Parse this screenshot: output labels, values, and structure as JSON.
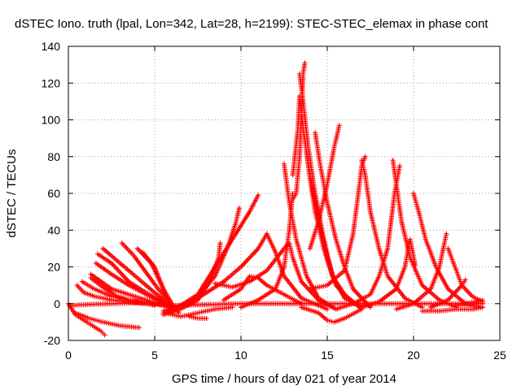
{
  "chart_data": {
    "type": "scatter",
    "title": "dSTEC Iono. truth (lpal, Lon=342, Lat=28, h=2199): STEC-STEC_elemax in phase cont",
    "xlabel": "GPS time / hours of day 021 of year 2014",
    "ylabel": "dSTEC  / TECUs",
    "xlim": [
      0,
      25
    ],
    "ylim": [
      -20,
      140
    ],
    "xticks": [
      0,
      5,
      10,
      15,
      20,
      25
    ],
    "yticks": [
      -20,
      0,
      20,
      40,
      60,
      80,
      100,
      120,
      140
    ],
    "grid": true,
    "marker": "plus",
    "color": "#ff0000",
    "series": [
      {
        "points": [
          [
            0.0,
            0
          ],
          [
            0.4,
            -6
          ],
          [
            0.9,
            -9
          ],
          [
            1.4,
            -12
          ],
          [
            1.9,
            -15
          ],
          [
            2.1,
            -17
          ]
        ]
      },
      {
        "points": [
          [
            0.4,
            -5
          ],
          [
            1.2,
            -8
          ],
          [
            2.0,
            -10
          ],
          [
            3.0,
            -12
          ],
          [
            4.1,
            -13
          ]
        ]
      },
      {
        "points": [
          [
            0.5,
            10
          ],
          [
            0.9,
            6
          ],
          [
            1.5,
            4
          ],
          [
            2.5,
            2
          ],
          [
            3.5,
            1
          ],
          [
            4.5,
            0
          ],
          [
            5.0,
            -1
          ]
        ]
      },
      {
        "points": [
          [
            0.8,
            12
          ],
          [
            1.5,
            8
          ],
          [
            2.5,
            4
          ],
          [
            3.5,
            2
          ],
          [
            4.5,
            0.5
          ],
          [
            5.5,
            -1
          ]
        ]
      },
      {
        "points": [
          [
            1.3,
            16
          ],
          [
            2.5,
            8
          ],
          [
            3.5,
            5
          ],
          [
            4.5,
            2
          ],
          [
            5.5,
            -1
          ],
          [
            6.0,
            -3
          ]
        ]
      },
      {
        "points": [
          [
            1.6,
            22
          ],
          [
            2.5,
            16
          ],
          [
            3.5,
            10
          ],
          [
            4.5,
            5
          ],
          [
            5.5,
            0
          ],
          [
            6.0,
            -2
          ]
        ]
      },
      {
        "points": [
          [
            1.7,
            27
          ],
          [
            2.5,
            22
          ],
          [
            3.5,
            12
          ],
          [
            4.5,
            6
          ],
          [
            5.5,
            1
          ],
          [
            6.0,
            -2
          ]
        ]
      },
      {
        "points": [
          [
            2.0,
            30
          ],
          [
            3.0,
            22
          ],
          [
            4.0,
            14
          ],
          [
            5.0,
            6
          ],
          [
            5.7,
            1
          ],
          [
            6.0,
            -2
          ]
        ]
      },
      {
        "points": [
          [
            3.1,
            33
          ],
          [
            3.8,
            26
          ],
          [
            4.5,
            17
          ],
          [
            5.2,
            8
          ],
          [
            5.8,
            2
          ],
          [
            6.0,
            -2
          ]
        ]
      },
      {
        "points": [
          [
            4.0,
            30
          ],
          [
            4.8,
            22
          ],
          [
            5.4,
            10
          ],
          [
            5.8,
            2
          ],
          [
            6.1,
            -4
          ]
        ]
      },
      {
        "points": [
          [
            4.3,
            28
          ],
          [
            5.0,
            20
          ],
          [
            5.5,
            8
          ],
          [
            6.0,
            0
          ],
          [
            6.4,
            -5
          ]
        ]
      },
      {
        "points": [
          [
            1.3,
            14
          ],
          [
            2.0,
            9
          ],
          [
            2.8,
            4
          ],
          [
            3.5,
            2
          ],
          [
            4.0,
            1
          ]
        ]
      },
      {
        "points": [
          [
            0.1,
            -1
          ],
          [
            1.0,
            -0.5
          ],
          [
            2.5,
            0
          ],
          [
            4.0,
            0.5
          ],
          [
            6.0,
            -1
          ],
          [
            8.0,
            -0.5
          ],
          [
            10.0,
            0
          ],
          [
            12.0,
            0
          ],
          [
            14.0,
            0
          ],
          [
            16.0,
            0
          ],
          [
            18.0,
            0
          ],
          [
            20.0,
            0
          ],
          [
            22.0,
            0
          ],
          [
            24.0,
            0
          ]
        ]
      },
      {
        "points": [
          [
            5.6,
            -5
          ],
          [
            6.5,
            -7
          ],
          [
            7.5,
            -5
          ],
          [
            8.5,
            -3
          ],
          [
            9.5,
            -2
          ]
        ]
      },
      {
        "points": [
          [
            7.0,
            -7
          ],
          [
            7.5,
            -8
          ],
          [
            8.0,
            -8
          ]
        ]
      },
      {
        "points": [
          [
            5.5,
            -6
          ],
          [
            6.5,
            -3
          ],
          [
            7.5,
            2
          ],
          [
            8.2,
            12
          ],
          [
            8.7,
            25
          ],
          [
            8.8,
            33
          ]
        ]
      },
      {
        "points": [
          [
            5.5,
            -5
          ],
          [
            6.5,
            -2
          ],
          [
            7.5,
            4
          ],
          [
            8.5,
            15
          ],
          [
            9.2,
            30
          ],
          [
            9.7,
            44
          ],
          [
            9.9,
            52
          ]
        ]
      },
      {
        "points": [
          [
            5.5,
            -4
          ],
          [
            6.5,
            -1
          ],
          [
            7.5,
            5
          ],
          [
            8.5,
            20
          ],
          [
            9.5,
            35
          ],
          [
            10.5,
            50
          ],
          [
            11.0,
            59
          ]
        ]
      },
      {
        "points": [
          [
            6.0,
            -3
          ],
          [
            7.5,
            3
          ],
          [
            9.0,
            12
          ],
          [
            10.0,
            20
          ],
          [
            11.0,
            30
          ],
          [
            11.5,
            38
          ],
          [
            12.0,
            28
          ],
          [
            12.5,
            15
          ],
          [
            13.5,
            3
          ],
          [
            15.0,
            -3
          ]
        ]
      },
      {
        "points": [
          [
            8.5,
            11
          ],
          [
            9.5,
            9
          ],
          [
            10.5,
            12
          ],
          [
            11.5,
            18
          ],
          [
            12.5,
            30
          ],
          [
            12.8,
            33
          ],
          [
            13.0,
            25
          ],
          [
            13.5,
            12
          ],
          [
            14.5,
            2
          ],
          [
            15.5,
            -3
          ]
        ]
      },
      {
        "points": [
          [
            10.0,
            -2
          ],
          [
            11.0,
            2
          ],
          [
            12.0,
            8
          ],
          [
            12.5,
            20
          ],
          [
            12.8,
            40
          ],
          [
            13.0,
            60
          ]
        ]
      },
      {
        "points": [
          [
            9.0,
            2
          ],
          [
            10.0,
            8
          ],
          [
            10.5,
            15
          ],
          [
            11.0,
            14
          ],
          [
            11.5,
            10
          ],
          [
            12.5,
            5
          ],
          [
            13.5,
            0
          ]
        ]
      },
      {
        "points": [
          [
            12.5,
            76
          ],
          [
            12.8,
            55
          ],
          [
            13.2,
            35
          ],
          [
            13.8,
            15
          ],
          [
            14.5,
            3
          ],
          [
            15.5,
            -3
          ]
        ]
      },
      {
        "points": [
          [
            12.9,
            55
          ],
          [
            13.2,
            60
          ],
          [
            13.4,
            80
          ],
          [
            13.5,
            100
          ],
          [
            13.6,
            125
          ],
          [
            13.7,
            131
          ]
        ]
      },
      {
        "points": [
          [
            13.4,
            125
          ],
          [
            13.6,
            110
          ],
          [
            13.9,
            85
          ],
          [
            14.3,
            60
          ],
          [
            14.8,
            35
          ],
          [
            15.3,
            15
          ],
          [
            16.0,
            3
          ],
          [
            17.0,
            -2
          ]
        ]
      },
      {
        "points": [
          [
            13.0,
            70
          ],
          [
            13.3,
            95
          ],
          [
            13.4,
            113
          ],
          [
            13.6,
            95
          ],
          [
            14.0,
            70
          ],
          [
            14.5,
            45
          ],
          [
            15.0,
            25
          ],
          [
            15.5,
            10
          ],
          [
            16.5,
            0
          ]
        ]
      },
      {
        "points": [
          [
            13.8,
            82
          ],
          [
            14.0,
            68
          ],
          [
            14.3,
            50
          ],
          [
            14.8,
            30
          ],
          [
            15.3,
            15
          ],
          [
            16.0,
            5
          ],
          [
            17.0,
            -3
          ]
        ]
      },
      {
        "points": [
          [
            14.3,
            93
          ],
          [
            14.6,
            75
          ],
          [
            15.0,
            55
          ],
          [
            15.5,
            35
          ],
          [
            16.0,
            20
          ],
          [
            16.5,
            8
          ],
          [
            17.5,
            -2
          ]
        ]
      },
      {
        "points": [
          [
            14.0,
            30
          ],
          [
            14.5,
            45
          ],
          [
            15.0,
            65
          ],
          [
            15.4,
            85
          ],
          [
            15.7,
            97
          ]
        ]
      },
      {
        "points": [
          [
            13.5,
            -2
          ],
          [
            14.5,
            -5
          ],
          [
            15.0,
            -9
          ],
          [
            15.4,
            -10
          ],
          [
            16.0,
            -8
          ],
          [
            17.0,
            -3
          ]
        ]
      },
      {
        "points": [
          [
            14.0,
            8
          ],
          [
            15.0,
            10
          ],
          [
            16.0,
            18
          ],
          [
            16.5,
            38
          ],
          [
            16.8,
            60
          ],
          [
            17.0,
            75
          ],
          [
            17.2,
            80
          ]
        ]
      },
      {
        "points": [
          [
            17.0,
            78
          ],
          [
            17.2,
            70
          ],
          [
            17.5,
            50
          ],
          [
            18.0,
            30
          ],
          [
            18.5,
            15
          ],
          [
            19.5,
            3
          ],
          [
            20.5,
            -2
          ]
        ]
      },
      {
        "points": [
          [
            15.5,
            -3
          ],
          [
            16.5,
            0
          ],
          [
            17.5,
            5
          ],
          [
            18.0,
            15
          ],
          [
            18.5,
            30
          ],
          [
            18.9,
            60
          ],
          [
            19.2,
            75
          ]
        ]
      },
      {
        "points": [
          [
            18.8,
            78
          ],
          [
            19.0,
            65
          ],
          [
            19.3,
            45
          ],
          [
            19.8,
            25
          ],
          [
            20.5,
            10
          ],
          [
            21.5,
            2
          ],
          [
            22.5,
            -2
          ]
        ]
      },
      {
        "points": [
          [
            17.0,
            -2
          ],
          [
            18.0,
            1
          ],
          [
            19.0,
            8
          ],
          [
            19.5,
            20
          ],
          [
            19.8,
            35
          ],
          [
            20.1,
            21
          ]
        ]
      },
      {
        "points": [
          [
            20.0,
            60
          ],
          [
            20.3,
            50
          ],
          [
            20.7,
            35
          ],
          [
            21.3,
            20
          ],
          [
            22.0,
            8
          ],
          [
            23.0,
            0
          ],
          [
            24.0,
            -2
          ]
        ]
      },
      {
        "points": [
          [
            19.0,
            -3
          ],
          [
            20.0,
            0
          ],
          [
            21.0,
            8
          ],
          [
            21.5,
            20
          ],
          [
            21.9,
            38
          ]
        ]
      },
      {
        "points": [
          [
            22.0,
            30
          ],
          [
            22.4,
            20
          ],
          [
            22.8,
            10
          ],
          [
            23.4,
            4
          ],
          [
            24.0,
            1
          ]
        ]
      },
      {
        "points": [
          [
            21.0,
            -2
          ],
          [
            22.0,
            2
          ],
          [
            22.8,
            10
          ],
          [
            23.0,
            13
          ]
        ]
      },
      {
        "points": [
          [
            20.5,
            -4
          ],
          [
            21.5,
            -4
          ],
          [
            22.5,
            -3
          ],
          [
            23.5,
            -3
          ],
          [
            24.0,
            -2
          ]
        ]
      },
      {
        "points": [
          [
            22.5,
            -1
          ],
          [
            23.0,
            0
          ],
          [
            23.5,
            1
          ],
          [
            24.0,
            2
          ]
        ]
      }
    ]
  }
}
